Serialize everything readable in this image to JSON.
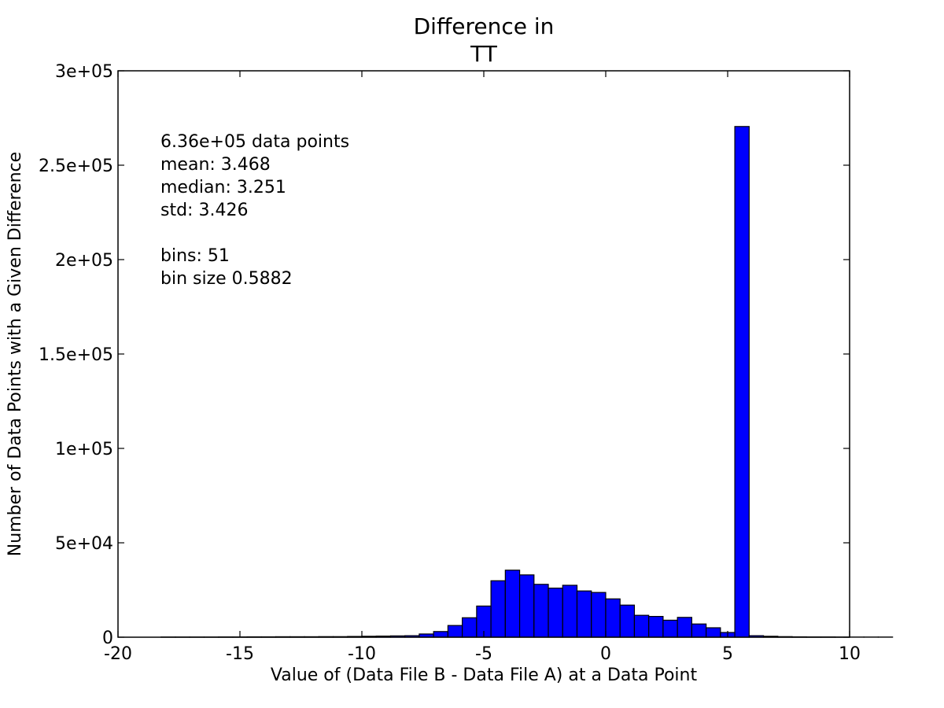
{
  "chart_data": {
    "type": "bar",
    "title_lines": [
      "Difference in",
      "TT"
    ],
    "xlabel": "Value of (Data File B - Data File A) at a Data Point",
    "ylabel": "Number of Data Points with a Given Difference",
    "xlim": [
      -20,
      10
    ],
    "ylim": [
      0,
      300000
    ],
    "xticks": [
      -20,
      -15,
      -10,
      -5,
      0,
      5,
      10
    ],
    "xtick_labels": [
      "-20",
      "-15",
      "-10",
      "-5",
      "0",
      "5",
      "10"
    ],
    "yticks": [
      0,
      50000,
      100000,
      150000,
      200000,
      250000,
      300000
    ],
    "ytick_labels": [
      "0",
      "5e+04",
      "1e+05",
      "1.5e+05",
      "2e+05",
      "2.5e+05",
      "3e+05"
    ],
    "bar_color": "#0000ff",
    "bin_start": -18.235,
    "bin_width": 0.5882,
    "values": [
      100,
      100,
      100,
      100,
      150,
      150,
      200,
      200,
      250,
      250,
      250,
      300,
      300,
      400,
      500,
      600,
      700,
      800,
      1700,
      3000,
      6200,
      10300,
      16500,
      29900,
      35500,
      33000,
      28000,
      26000,
      27500,
      24500,
      23700,
      20300,
      17000,
      11600,
      11000,
      9000,
      10500,
      7000,
      5000,
      2500,
      270500,
      800,
      500,
      300,
      200,
      150,
      150,
      100,
      100,
      100,
      100
    ],
    "annotation": {
      "lines": [
        "6.36e+05 data points",
        "mean: 3.468",
        "median: 3.251",
        "std: 3.426",
        "",
        "bins: 51",
        "bin size 0.5882"
      ]
    }
  }
}
